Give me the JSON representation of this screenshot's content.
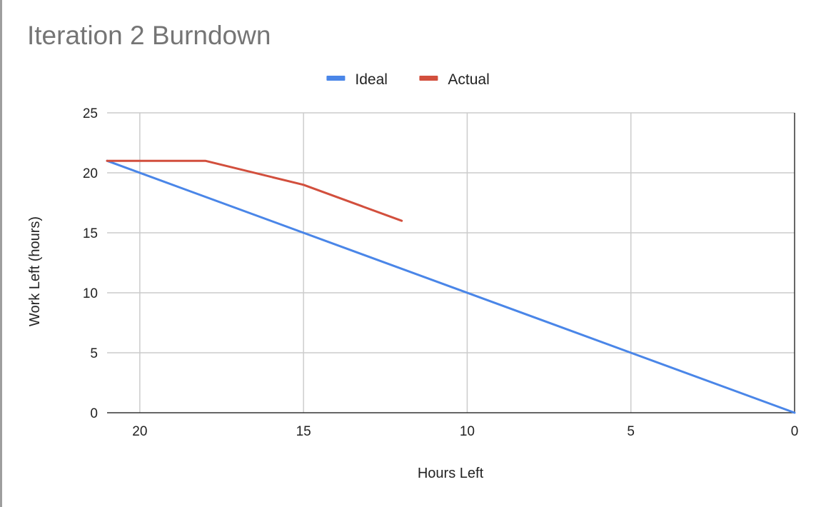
{
  "chart_data": {
    "type": "line",
    "title": "Iteration 2 Burndown",
    "xlabel": "Hours Left",
    "ylabel": "Work Left (hours)",
    "xlim": [
      21,
      0
    ],
    "ylim": [
      0,
      25
    ],
    "x_reversed": true,
    "xticks": [
      20,
      15,
      10,
      5,
      0
    ],
    "yticks": [
      0,
      5,
      10,
      15,
      20,
      25
    ],
    "grid": true,
    "legend_position": "top",
    "series": [
      {
        "name": "Ideal",
        "color": "#4a86e8",
        "points": [
          [
            21,
            21
          ],
          [
            0,
            0
          ]
        ]
      },
      {
        "name": "Actual",
        "color": "#d24f3d",
        "points": [
          [
            21,
            21
          ],
          [
            18,
            21
          ],
          [
            15,
            19
          ],
          [
            12,
            16
          ]
        ]
      }
    ]
  }
}
